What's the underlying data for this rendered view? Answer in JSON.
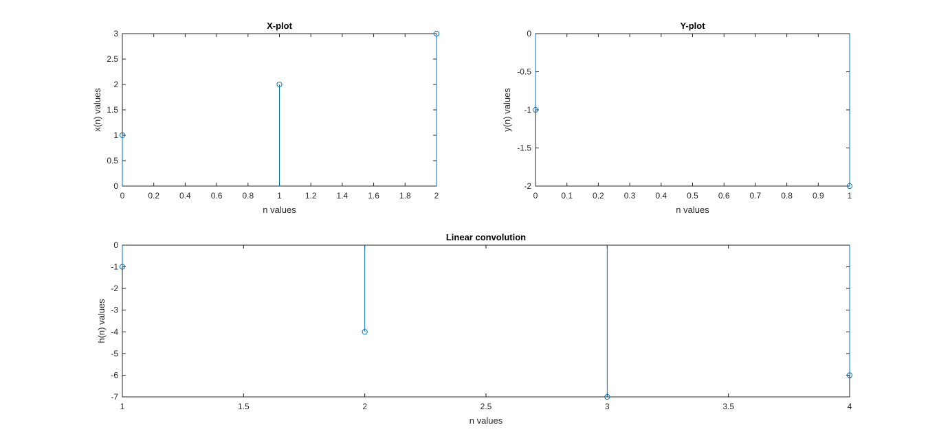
{
  "chart_data": [
    {
      "type": "stem",
      "title": "X-plot",
      "xlabel": "n values",
      "ylabel": "x(n) values",
      "x": [
        0,
        1,
        2
      ],
      "y": [
        1,
        2,
        3
      ],
      "xlim": [
        0,
        2
      ],
      "ylim": [
        0,
        3
      ],
      "xticks": [
        0,
        0.2,
        0.4,
        0.6,
        0.8,
        1,
        1.2,
        1.4,
        1.6,
        1.8,
        2
      ],
      "xtick_labels": [
        "0",
        "0.2",
        "0.4",
        "0.6",
        "0.8",
        "1",
        "1.2",
        "1.4",
        "1.6",
        "1.8",
        "2"
      ],
      "yticks": [
        0,
        0.5,
        1,
        1.5,
        2,
        2.5,
        3
      ],
      "ytick_labels": [
        "0",
        "0.5",
        "1",
        "1.5",
        "2",
        "2.5",
        "3"
      ],
      "grid": false,
      "color": "#0072BD"
    },
    {
      "type": "stem",
      "title": "Y-plot",
      "xlabel": "n values",
      "ylabel": "y(n) values",
      "x": [
        0,
        1
      ],
      "y": [
        -1,
        -2
      ],
      "xlim": [
        0,
        1
      ],
      "ylim": [
        -2,
        0
      ],
      "xticks": [
        0,
        0.1,
        0.2,
        0.3,
        0.4,
        0.5,
        0.6,
        0.7,
        0.8,
        0.9,
        1
      ],
      "xtick_labels": [
        "0",
        "0.1",
        "0.2",
        "0.3",
        "0.4",
        "0.5",
        "0.6",
        "0.7",
        "0.8",
        "0.9",
        "1"
      ],
      "yticks": [
        -2,
        -1.5,
        -1,
        -0.5,
        0
      ],
      "ytick_labels": [
        "-2",
        "-1.5",
        "-1",
        "-0.5",
        "0"
      ],
      "grid": false,
      "color": "#0072BD"
    },
    {
      "type": "stem",
      "title": "Linear convolution",
      "xlabel": "n values",
      "ylabel": "h(n) values",
      "x": [
        1,
        2,
        3,
        4
      ],
      "y": [
        -1,
        -4,
        -7,
        -6
      ],
      "xlim": [
        1,
        4
      ],
      "ylim": [
        -7,
        0
      ],
      "xticks": [
        1,
        1.5,
        2,
        2.5,
        3,
        3.5,
        4
      ],
      "xtick_labels": [
        "1",
        "1.5",
        "2",
        "2.5",
        "3",
        "3.5",
        "4"
      ],
      "yticks": [
        -7,
        -6,
        -5,
        -4,
        -3,
        -2,
        -1,
        0
      ],
      "ytick_labels": [
        "-7",
        "-6",
        "-5",
        "-4",
        "-3",
        "-2",
        "-1",
        "0"
      ],
      "grid": false,
      "color": "#0072BD"
    }
  ]
}
